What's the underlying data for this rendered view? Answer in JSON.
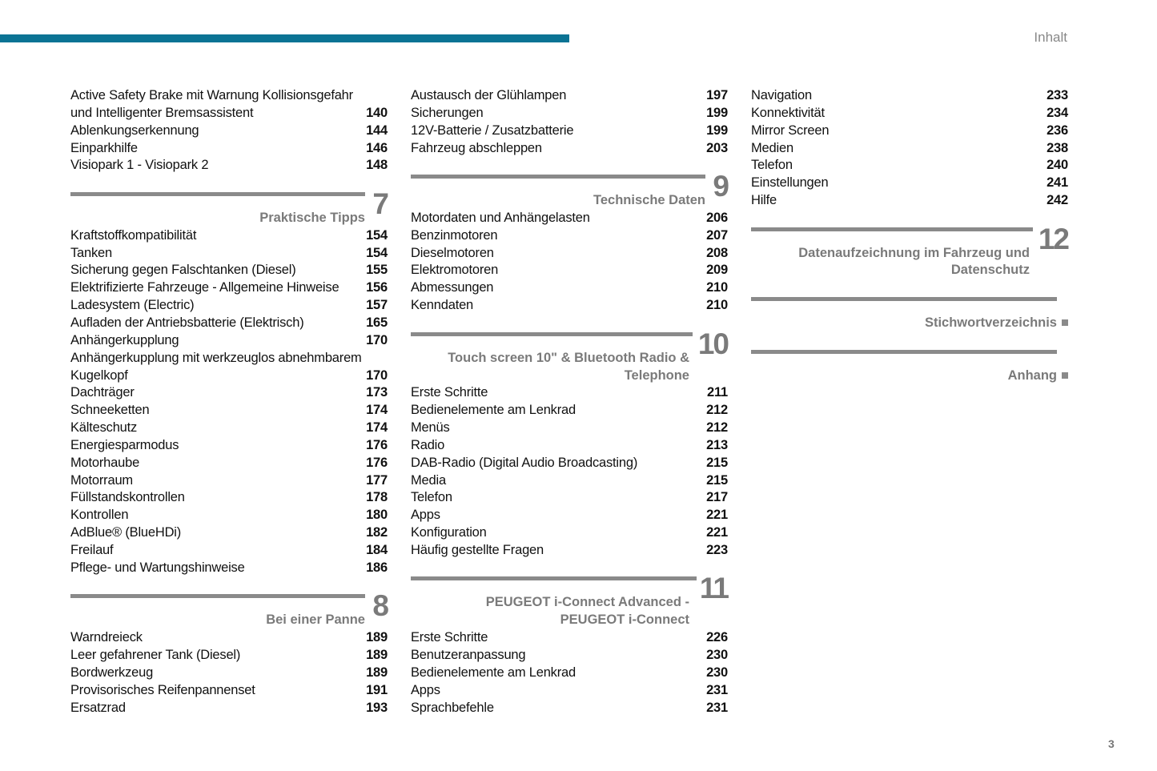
{
  "header": {
    "chapter": "Inhalt",
    "accent_color": "#0b7394"
  },
  "page_number": "3",
  "columns": [
    [
      {
        "t": "Active Safety Brake mit Warnung Kollisionsgefahr",
        "p": ""
      },
      {
        "t": "und Intelligenter Bremsassistent",
        "p": "140"
      },
      {
        "t": "Ablenkungserkennung",
        "p": "144"
      },
      {
        "t": "Einparkhilfe",
        "p": "146"
      },
      {
        "t": "Visiopark 1 - Visiopark 2",
        "p": "148"
      },
      {
        "section": [
          "Praktische Tipps"
        ],
        "num": "7"
      },
      {
        "t": "Kraftstoffkompatibilität",
        "p": "154"
      },
      {
        "t": "Tanken",
        "p": "154"
      },
      {
        "t": "Sicherung gegen Falschtanken (Diesel)",
        "p": "155"
      },
      {
        "t": "Elektrifizierte Fahrzeuge - Allgemeine Hinweise",
        "p": "156"
      },
      {
        "t": "Ladesystem (Electric)",
        "p": "157"
      },
      {
        "t": "Aufladen der Antriebsbatterie (Elektrisch)",
        "p": "165"
      },
      {
        "t": "Anhängerkupplung",
        "p": "170"
      },
      {
        "t": "Anhängerkupplung mit werkzeuglos abnehmbarem",
        "p": ""
      },
      {
        "t": "Kugelkopf",
        "p": "170"
      },
      {
        "t": "Dachträger",
        "p": "173"
      },
      {
        "t": "Schneeketten",
        "p": "174"
      },
      {
        "t": "Kälteschutz",
        "p": "174"
      },
      {
        "t": "Energiesparmodus",
        "p": "176"
      },
      {
        "t": "Motorhaube",
        "p": "176"
      },
      {
        "t": "Motorraum",
        "p": "177"
      },
      {
        "t": "Füllstandskontrollen",
        "p": "178"
      },
      {
        "t": "Kontrollen",
        "p": "180"
      },
      {
        "t": "AdBlue® (BlueHDi)",
        "p": "182"
      },
      {
        "t": "Freilauf",
        "p": "184"
      },
      {
        "t": "Pflege- und Wartungshinweise",
        "p": "186"
      },
      {
        "section": [
          "Bei einer Panne"
        ],
        "num": "8"
      },
      {
        "t": "Warndreieck",
        "p": "189"
      },
      {
        "t": "Leer gefahrener Tank (Diesel)",
        "p": "189"
      },
      {
        "t": "Bordwerkzeug",
        "p": "189"
      },
      {
        "t": "Provisorisches Reifenpannenset",
        "p": "191"
      },
      {
        "t": "Ersatzrad",
        "p": "193"
      }
    ],
    [
      {
        "t": "Austausch der Glühlampen",
        "p": "197"
      },
      {
        "t": "Sicherungen",
        "p": "199"
      },
      {
        "t": "12V-Batterie / Zusatzbatterie",
        "p": "199"
      },
      {
        "t": "Fahrzeug abschleppen",
        "p": "203"
      },
      {
        "section": [
          "Technische Daten"
        ],
        "num": "9"
      },
      {
        "t": "Motordaten und Anhängelasten",
        "p": "206"
      },
      {
        "t": "Benzinmotoren",
        "p": "207"
      },
      {
        "t": "Dieselmotoren",
        "p": "208"
      },
      {
        "t": "Elektromotoren",
        "p": "209"
      },
      {
        "t": "Abmessungen",
        "p": "210"
      },
      {
        "t": "Kenndaten",
        "p": "210"
      },
      {
        "section": [
          "Touch screen 10\" & Bluetooth Radio &",
          "Telephone"
        ],
        "num": "10"
      },
      {
        "t": "Erste Schritte",
        "p": "211"
      },
      {
        "t": "Bedienelemente am Lenkrad",
        "p": "212"
      },
      {
        "t": "Menüs",
        "p": "212"
      },
      {
        "t": "Radio",
        "p": "213"
      },
      {
        "t": "DAB-Radio (Digital Audio Broadcasting)",
        "p": "215"
      },
      {
        "t": "Media",
        "p": "215"
      },
      {
        "t": "Telefon",
        "p": "217"
      },
      {
        "t": "Apps",
        "p": "221"
      },
      {
        "t": "Konfiguration",
        "p": "221"
      },
      {
        "t": "Häufig gestellte Fragen",
        "p": "223"
      },
      {
        "section": [
          "PEUGEOT i-Connect Advanced -",
          "PEUGEOT i-Connect"
        ],
        "num": "11"
      },
      {
        "t": "Erste Schritte",
        "p": "226"
      },
      {
        "t": "Benutzeranpassung",
        "p": "230"
      },
      {
        "t": "Bedienelemente am Lenkrad",
        "p": "230"
      },
      {
        "t": "Apps",
        "p": "231"
      },
      {
        "t": "Sprachbefehle",
        "p": "231"
      }
    ],
    [
      {
        "t": "Navigation",
        "p": "233"
      },
      {
        "t": "Konnektivität",
        "p": "234"
      },
      {
        "t": "Mirror Screen",
        "p": "236"
      },
      {
        "t": "Medien",
        "p": "238"
      },
      {
        "t": "Telefon",
        "p": "240"
      },
      {
        "t": "Einstellungen",
        "p": "241"
      },
      {
        "t": "Hilfe",
        "p": "242"
      },
      {
        "section": [
          "Datenaufzeichnung im Fahrzeug und",
          "Datenschutz"
        ],
        "num": "12"
      },
      {
        "section": [
          "Stichwortverzeichnis"
        ],
        "num": ""
      },
      {
        "section": [
          "Anhang"
        ],
        "num": ""
      }
    ]
  ]
}
